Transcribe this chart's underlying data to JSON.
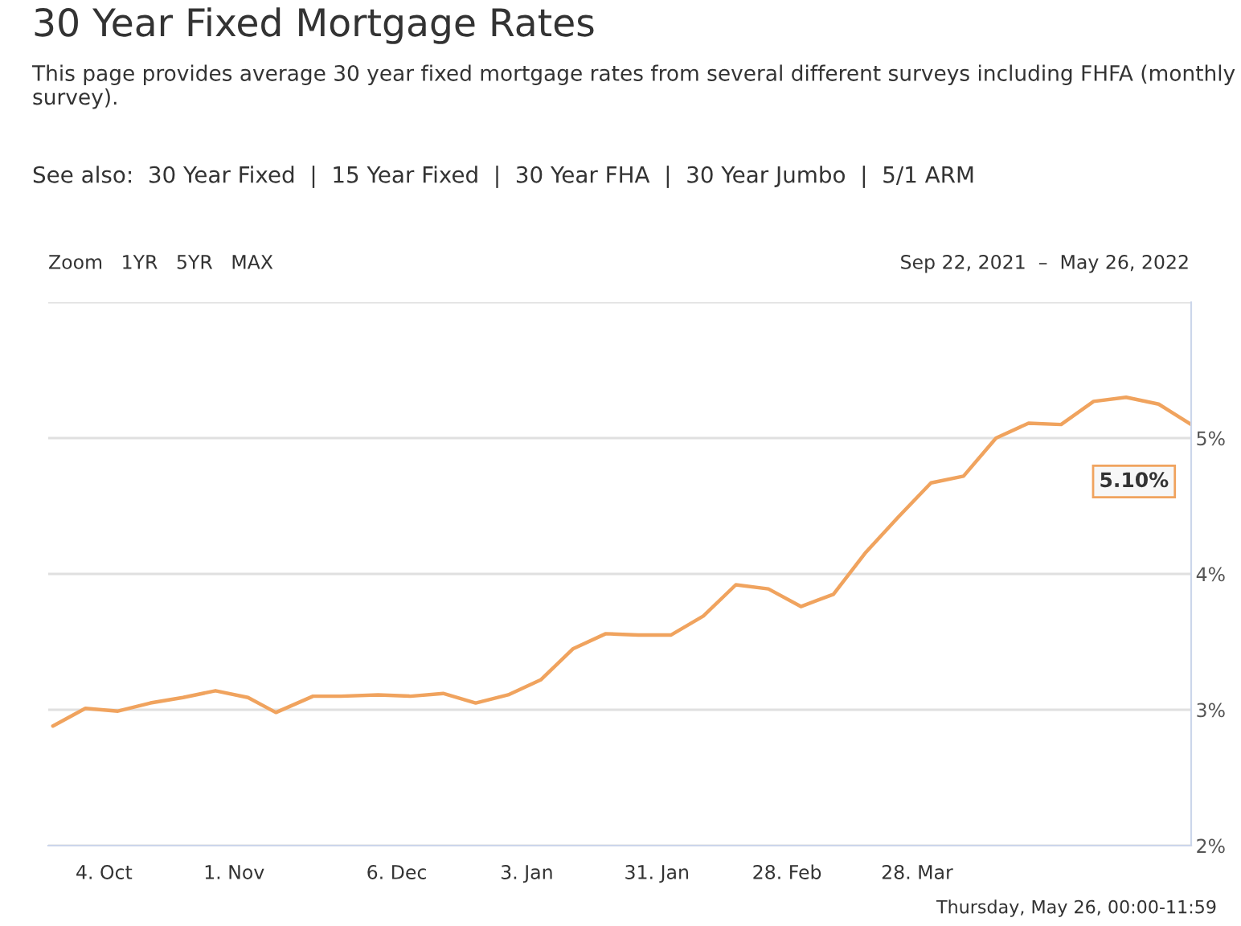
{
  "chart_data": {
    "type": "line",
    "title": "30 Year Fixed Mortgage Rates",
    "subtitle": "This page provides average 30 year fixed mortgage rates from several different surveys including FHFA (monthly survey).",
    "x": [
      "2021-09-23",
      "2021-09-30",
      "2021-10-07",
      "2021-10-14",
      "2021-10-21",
      "2021-10-28",
      "2021-11-04",
      "2021-11-10",
      "2021-11-18",
      "2021-11-24",
      "2021-12-02",
      "2021-12-09",
      "2021-12-16",
      "2021-12-23",
      "2021-12-30",
      "2022-01-06",
      "2022-01-13",
      "2022-01-20",
      "2022-01-27",
      "2022-02-03",
      "2022-02-10",
      "2022-02-17",
      "2022-02-24",
      "2022-03-03",
      "2022-03-10",
      "2022-03-17",
      "2022-03-24",
      "2022-03-31",
      "2022-04-07",
      "2022-04-14",
      "2022-04-21",
      "2022-04-28",
      "2022-05-05",
      "2022-05-12",
      "2022-05-19",
      "2022-05-26"
    ],
    "series": [
      {
        "color": "#f0a35e",
        "values": [
          2.88,
          3.01,
          2.99,
          3.05,
          3.09,
          3.14,
          3.09,
          2.98,
          3.1,
          3.1,
          3.11,
          3.1,
          3.12,
          3.05,
          3.11,
          3.22,
          3.45,
          3.56,
          3.55,
          3.55,
          3.69,
          3.92,
          3.89,
          3.76,
          3.85,
          4.16,
          4.42,
          4.67,
          4.72,
          5.0,
          5.11,
          5.1,
          5.27,
          5.3,
          5.25,
          5.1
        ]
      }
    ],
    "xlim": [
      "2021-09-22",
      "2022-05-26"
    ],
    "xticks": [
      {
        "value": "2021-10-04",
        "label": "4. Oct"
      },
      {
        "value": "2021-11-01",
        "label": "1. Nov"
      },
      {
        "value": "2021-12-06",
        "label": "6. Dec"
      },
      {
        "value": "2022-01-03",
        "label": "3. Jan"
      },
      {
        "value": "2022-01-31",
        "label": "31. Jan"
      },
      {
        "value": "2022-02-28",
        "label": "28. Feb"
      },
      {
        "value": "2022-03-28",
        "label": "28. Mar"
      }
    ],
    "ylim": [
      2,
      6
    ],
    "yticks": [
      {
        "value": 2,
        "label": "2%"
      },
      {
        "value": 3,
        "label": "3%"
      },
      {
        "value": 4,
        "label": "4%"
      },
      {
        "value": 5,
        "label": "5%"
      },
      {
        "value": 6,
        "label": null
      }
    ],
    "grid": "y",
    "marker": "none",
    "line_style": "solid",
    "legend": false,
    "annotations": [
      "See also:  30 Year Fixed  |  15 Year Fixed  |  30 Year FHA  |  30 Year Jumbo  |  5/1 ARM",
      "Zoom   1YR   5YR   MAX",
      "Sep 22, 2021  –  May 26, 2022",
      "Thursday, May 26, 00:00-11:59",
      {
        "text": "5.10%",
        "x": "2022-05-26",
        "y": 5.1
      }
    ]
  }
}
